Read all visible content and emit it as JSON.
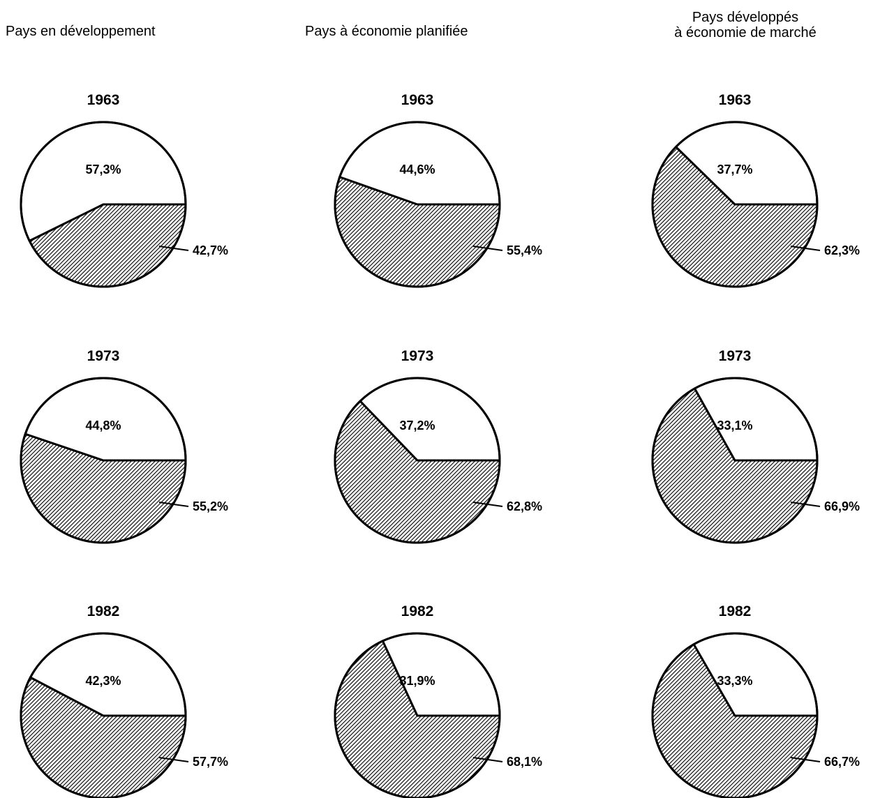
{
  "columns": [
    {
      "title_lines": [
        "Pays en développement"
      ]
    },
    {
      "title_lines": [
        "Pays à économie planifiée"
      ]
    },
    {
      "title_lines": [
        "Pays développés",
        "à économie de marché"
      ]
    }
  ],
  "chart_data": [
    {
      "type": "pie",
      "title": "1963",
      "column": "Pays en développement",
      "slices": [
        {
          "value": 57.3,
          "label": "57,3%",
          "fill": "white"
        },
        {
          "value": 42.7,
          "label": "42,7%",
          "fill": "hatched"
        }
      ]
    },
    {
      "type": "pie",
      "title": "1963",
      "column": "Pays à économie planifiée",
      "slices": [
        {
          "value": 44.6,
          "label": "44,6%",
          "fill": "white"
        },
        {
          "value": 55.4,
          "label": "55,4%",
          "fill": "hatched"
        }
      ]
    },
    {
      "type": "pie",
      "title": "1963",
      "column": "Pays développés à économie de marché",
      "slices": [
        {
          "value": 37.7,
          "label": "37,7%",
          "fill": "white"
        },
        {
          "value": 62.3,
          "label": "62,3%",
          "fill": "hatched"
        }
      ]
    },
    {
      "type": "pie",
      "title": "1973",
      "column": "Pays en développement",
      "slices": [
        {
          "value": 44.8,
          "label": "44,8%",
          "fill": "white"
        },
        {
          "value": 55.2,
          "label": "55,2%",
          "fill": "hatched"
        }
      ]
    },
    {
      "type": "pie",
      "title": "1973",
      "column": "Pays à économie planifiée",
      "slices": [
        {
          "value": 37.2,
          "label": "37,2%",
          "fill": "white"
        },
        {
          "value": 62.8,
          "label": "62,8%",
          "fill": "hatched"
        }
      ]
    },
    {
      "type": "pie",
      "title": "1973",
      "column": "Pays développés à économie de marché",
      "slices": [
        {
          "value": 33.1,
          "label": "33,1%",
          "fill": "white"
        },
        {
          "value": 66.9,
          "label": "66,9%",
          "fill": "hatched"
        }
      ]
    },
    {
      "type": "pie",
      "title": "1982",
      "column": "Pays en développement",
      "slices": [
        {
          "value": 42.3,
          "label": "42,3%",
          "fill": "white"
        },
        {
          "value": 57.7,
          "label": "57,7%",
          "fill": "hatched"
        }
      ]
    },
    {
      "type": "pie",
      "title": "1982",
      "column": "Pays à économie planifiée",
      "slices": [
        {
          "value": 31.9,
          "label": "31,9%",
          "fill": "white"
        },
        {
          "value": 68.1,
          "label": "68,1%",
          "fill": "hatched"
        }
      ]
    },
    {
      "type": "pie",
      "title": "1982",
      "column": "Pays développés à économie de marché",
      "slices": [
        {
          "value": 33.3,
          "label": "33,3%",
          "fill": "white"
        },
        {
          "value": 66.7,
          "label": "66,7%",
          "fill": "hatched"
        }
      ]
    }
  ]
}
